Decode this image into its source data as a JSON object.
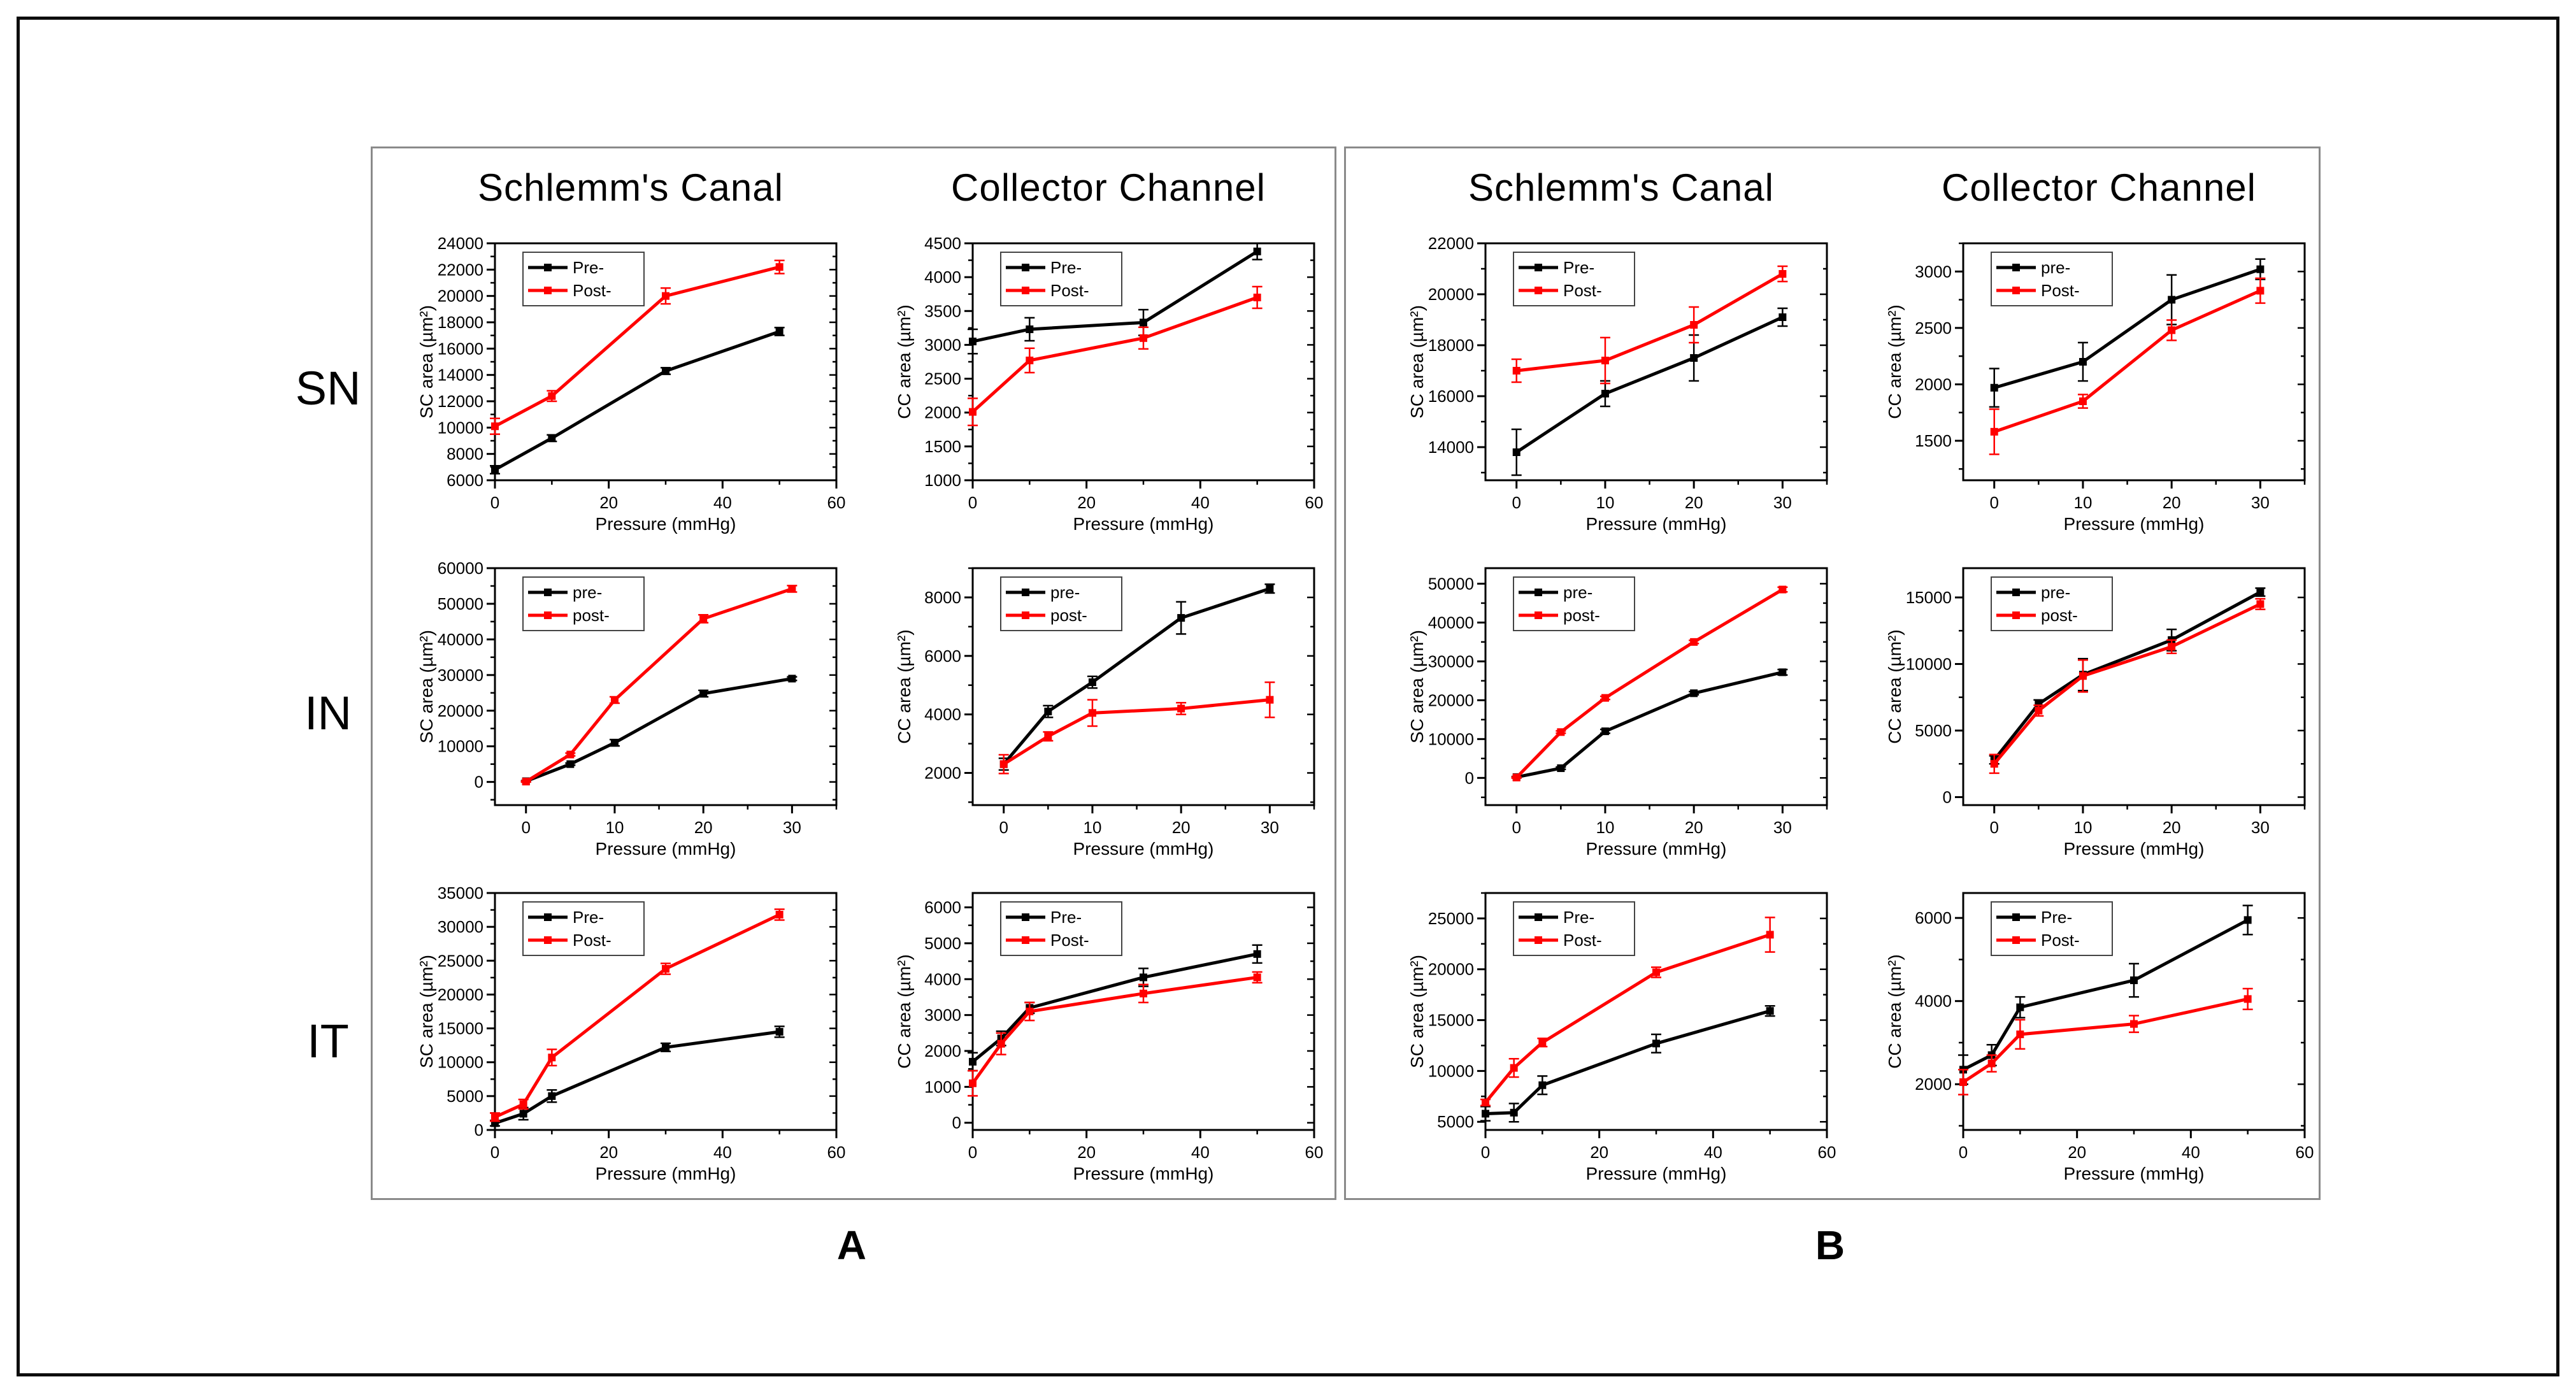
{
  "figure": {
    "row_labels": [
      "SN",
      "IN",
      "IT"
    ],
    "colors": {
      "pre": "#000000",
      "post": "#ff0000",
      "legend_border": "#444444",
      "panel_border": "#8a8a8a"
    }
  },
  "panels": [
    {
      "label": "A",
      "col_headers": [
        "Schlemm's Canal",
        "Collector  Channel"
      ]
    },
    {
      "label": "B",
      "col_headers": [
        "Schlemm's Canal",
        "Collector  Channel"
      ]
    }
  ],
  "chart_data": [
    {
      "panel": "A",
      "row": "SN",
      "location": "Schlemm's Canal",
      "type": "line",
      "xlabel": "Pressure (mmHg)",
      "ylabel": "SC area (µm²)",
      "xlim": [
        0,
        60
      ],
      "xticks": [
        0,
        20,
        40,
        60
      ],
      "ylim": [
        6000,
        24000
      ],
      "yticks": [
        6000,
        8000,
        10000,
        12000,
        14000,
        16000,
        18000,
        20000,
        22000,
        24000
      ],
      "legend_position": "top-left",
      "grid": false,
      "x": [
        0,
        10,
        30,
        50
      ],
      "series": [
        {
          "name": "Pre-",
          "color": "#000000",
          "values": [
            6800,
            9200,
            14300,
            17300
          ],
          "errors": [
            300,
            250,
            250,
            300
          ]
        },
        {
          "name": "Post-",
          "color": "#ff0000",
          "values": [
            10100,
            12400,
            20000,
            22200
          ],
          "errors": [
            600,
            400,
            600,
            500
          ]
        }
      ]
    },
    {
      "panel": "A",
      "row": "SN",
      "location": "Collector Channel",
      "type": "line",
      "xlabel": "Pressure (mmHg)",
      "ylabel": "CC area (µm²)",
      "xlim": [
        0,
        60
      ],
      "xticks": [
        0,
        20,
        40,
        60
      ],
      "ylim": [
        1000,
        4500
      ],
      "yticks": [
        1000,
        1500,
        2000,
        2500,
        3000,
        3500,
        4000,
        4500
      ],
      "legend_position": "top-left",
      "grid": false,
      "x": [
        0,
        10,
        30,
        50
      ],
      "series": [
        {
          "name": "Pre-",
          "color": "#000000",
          "values": [
            3050,
            3230,
            3330,
            4380
          ],
          "errors": [
            180,
            170,
            190,
            120
          ]
        },
        {
          "name": "Post-",
          "color": "#ff0000",
          "values": [
            2010,
            2770,
            3100,
            3700
          ],
          "errors": [
            200,
            180,
            160,
            160
          ]
        }
      ]
    },
    {
      "panel": "A",
      "row": "IN",
      "location": "Schlemm's Canal",
      "type": "line",
      "xlabel": "Pressure (mmHg)",
      "ylabel": "SC area (µm²)",
      "xlim": [
        -3.5,
        35
      ],
      "xticks": [
        0,
        10,
        20,
        30
      ],
      "ylim": [
        -6500,
        60000
      ],
      "yticks": [
        0,
        10000,
        20000,
        30000,
        40000,
        50000,
        60000
      ],
      "legend_position": "top-left",
      "grid": false,
      "x": [
        0,
        5,
        10,
        20,
        30
      ],
      "series": [
        {
          "name": "pre-",
          "color": "#000000",
          "values": [
            200,
            5000,
            11000,
            24800,
            29000
          ],
          "errors": [
            150,
            300,
            900,
            900,
            500
          ]
        },
        {
          "name": "post-",
          "color": "#ff0000",
          "values": [
            100,
            7700,
            23000,
            45800,
            54200
          ],
          "errors": [
            150,
            400,
            900,
            1100,
            900
          ]
        }
      ]
    },
    {
      "panel": "A",
      "row": "IN",
      "location": "Collector Channel",
      "type": "line",
      "xlabel": "Pressure (mmHg)",
      "ylabel": "CC area (µm²)",
      "xlim": [
        -3.5,
        35
      ],
      "xticks": [
        0,
        10,
        20,
        30
      ],
      "ylim": [
        900,
        9000
      ],
      "yticks": [
        2000,
        4000,
        6000,
        8000
      ],
      "legend_position": "top-left",
      "grid": false,
      "x": [
        0,
        5,
        10,
        20,
        30
      ],
      "series": [
        {
          "name": "pre-",
          "color": "#000000",
          "values": [
            2300,
            4100,
            5100,
            7300,
            8300
          ],
          "errors": [
            200,
            200,
            200,
            550,
            150
          ]
        },
        {
          "name": "post-",
          "color": "#ff0000",
          "values": [
            2300,
            3250,
            4050,
            4200,
            4500
          ],
          "errors": [
            320,
            150,
            450,
            200,
            600
          ]
        }
      ]
    },
    {
      "panel": "A",
      "row": "IT",
      "location": "Schlemm's Canal",
      "type": "line",
      "xlabel": "Pressure (mmHg)",
      "ylabel": "SC area (µm²)",
      "xlim": [
        0,
        60
      ],
      "xticks": [
        0,
        20,
        40,
        60
      ],
      "ylim": [
        0,
        35000
      ],
      "yticks": [
        0,
        5000,
        10000,
        15000,
        20000,
        25000,
        30000,
        35000
      ],
      "legend_position": "top-left",
      "grid": false,
      "x": [
        0,
        5,
        10,
        30,
        50
      ],
      "series": [
        {
          "name": "Pre-",
          "color": "#000000",
          "values": [
            1000,
            2400,
            5000,
            12200,
            14500
          ],
          "errors": [
            400,
            900,
            900,
            600,
            800
          ]
        },
        {
          "name": "Post-",
          "color": "#ff0000",
          "values": [
            1900,
            3800,
            10700,
            23800,
            31800
          ],
          "errors": [
            600,
            700,
            1200,
            800,
            800
          ]
        }
      ]
    },
    {
      "panel": "A",
      "row": "IT",
      "location": "Collector Channel",
      "type": "line",
      "xlabel": "Pressure (mmHg)",
      "ylabel": "CC area (µm²)",
      "xlim": [
        0,
        60
      ],
      "xticks": [
        0,
        20,
        40,
        60
      ],
      "ylim": [
        -200,
        6400
      ],
      "yticks": [
        0,
        1000,
        2000,
        3000,
        4000,
        5000,
        6000
      ],
      "legend_position": "top-left",
      "grid": false,
      "x": [
        0,
        5,
        10,
        30,
        50
      ],
      "series": [
        {
          "name": "Pre-",
          "color": "#000000",
          "values": [
            1700,
            2350,
            3200,
            4050,
            4700
          ],
          "errors": [
            250,
            200,
            150,
            250,
            250
          ]
        },
        {
          "name": "Post-",
          "color": "#ff0000",
          "values": [
            1100,
            2200,
            3100,
            3600,
            4050
          ],
          "errors": [
            350,
            300,
            250,
            250,
            150
          ]
        }
      ]
    },
    {
      "panel": "B",
      "row": "SN",
      "location": "Schlemm's Canal",
      "type": "line",
      "xlabel": "Pressure (mmHg)",
      "ylabel": "SC area (µm²)",
      "xlim": [
        -3.5,
        35
      ],
      "xticks": [
        0,
        10,
        20,
        30
      ],
      "ylim": [
        12700,
        22000
      ],
      "yticks": [
        14000,
        16000,
        18000,
        20000,
        22000
      ],
      "legend_position": "top-left",
      "grid": false,
      "x": [
        0,
        10,
        20,
        30
      ],
      "series": [
        {
          "name": "Pre-",
          "color": "#000000",
          "values": [
            13800,
            16100,
            17500,
            19100
          ],
          "errors": [
            900,
            500,
            900,
            350
          ]
        },
        {
          "name": "Post-",
          "color": "#ff0000",
          "values": [
            17000,
            17400,
            18800,
            20800
          ],
          "errors": [
            450,
            900,
            700,
            300
          ]
        }
      ]
    },
    {
      "panel": "B",
      "row": "SN",
      "location": "Collector Channel",
      "type": "line",
      "xlabel": "Pressure (mmHg)",
      "ylabel": "CC area (µm²)",
      "xlim": [
        -3.5,
        35
      ],
      "xticks": [
        0,
        10,
        20,
        30
      ],
      "ylim": [
        1150,
        3250
      ],
      "yticks": [
        1500,
        2000,
        2500,
        3000
      ],
      "legend_position": "top-left",
      "grid": false,
      "x": [
        0,
        10,
        20,
        30
      ],
      "series": [
        {
          "name": "pre-",
          "color": "#000000",
          "values": [
            1970,
            2200,
            2750,
            3020
          ],
          "errors": [
            170,
            170,
            220,
            90
          ]
        },
        {
          "name": "Post-",
          "color": "#ff0000",
          "values": [
            1580,
            1850,
            2480,
            2830
          ],
          "errors": [
            200,
            60,
            90,
            110
          ]
        }
      ]
    },
    {
      "panel": "B",
      "row": "IN",
      "location": "Schlemm's Canal",
      "type": "line",
      "xlabel": "Pressure (mmHg)",
      "ylabel": "SC area (µm²)",
      "xlim": [
        -3.5,
        35
      ],
      "xticks": [
        0,
        10,
        20,
        30
      ],
      "ylim": [
        -7000,
        54000
      ],
      "yticks": [
        0,
        10000,
        20000,
        30000,
        40000,
        50000
      ],
      "legend_position": "top-left",
      "grid": false,
      "x": [
        0,
        5,
        10,
        20,
        30
      ],
      "series": [
        {
          "name": "pre-",
          "color": "#000000",
          "values": [
            200,
            2500,
            12000,
            21800,
            27200
          ],
          "errors": [
            150,
            300,
            500,
            400,
            700
          ]
        },
        {
          "name": "post-",
          "color": "#ff0000",
          "values": [
            100,
            11800,
            20600,
            35000,
            48500
          ],
          "errors": [
            150,
            300,
            400,
            400,
            600
          ]
        }
      ]
    },
    {
      "panel": "B",
      "row": "IN",
      "location": "Collector Channel",
      "type": "line",
      "xlabel": "Pressure (mmHg)",
      "ylabel": "CC area (µm²)",
      "xlim": [
        -3.5,
        35
      ],
      "xticks": [
        0,
        10,
        20,
        30
      ],
      "ylim": [
        -600,
        17200
      ],
      "yticks": [
        0,
        5000,
        10000,
        15000
      ],
      "legend_position": "top-left",
      "grid": false,
      "x": [
        0,
        5,
        10,
        20,
        30
      ],
      "series": [
        {
          "name": "pre-",
          "color": "#000000",
          "values": [
            2800,
            7000,
            9200,
            11800,
            15400
          ],
          "errors": [
            300,
            300,
            1200,
            800,
            300
          ]
        },
        {
          "name": "post-",
          "color": "#ff0000",
          "values": [
            2500,
            6500,
            9100,
            11300,
            14500
          ],
          "errors": [
            700,
            400,
            1200,
            500,
            400
          ]
        }
      ]
    },
    {
      "panel": "B",
      "row": "IT",
      "location": "Schlemm's Canal",
      "type": "line",
      "xlabel": "Pressure (mmHg)",
      "ylabel": "SC area (µm²)",
      "xlim": [
        0,
        60
      ],
      "xticks": [
        0,
        20,
        40,
        60
      ],
      "ylim": [
        4200,
        27500
      ],
      "yticks": [
        5000,
        10000,
        15000,
        20000,
        25000
      ],
      "legend_position": "top-left",
      "grid": false,
      "x": [
        0,
        5,
        10,
        30,
        50
      ],
      "series": [
        {
          "name": "Pre-",
          "color": "#000000",
          "values": [
            5800,
            5900,
            8600,
            12700,
            15900
          ],
          "errors": [
            700,
            900,
            900,
            900,
            500
          ]
        },
        {
          "name": "Post-",
          "color": "#ff0000",
          "values": [
            6900,
            10300,
            12800,
            19700,
            23400
          ],
          "errors": [
            300,
            900,
            400,
            500,
            1700
          ]
        }
      ]
    },
    {
      "panel": "B",
      "row": "IT",
      "location": "Collector Channel",
      "type": "line",
      "xlabel": "Pressure (mmHg)",
      "ylabel": "CC area (µm²)",
      "xlim": [
        0,
        60
      ],
      "xticks": [
        0,
        20,
        40,
        60
      ],
      "ylim": [
        900,
        6600
      ],
      "yticks": [
        2000,
        4000,
        6000
      ],
      "legend_position": "top-left",
      "grid": false,
      "x": [
        0,
        5,
        10,
        30,
        50
      ],
      "series": [
        {
          "name": "Pre-",
          "color": "#000000",
          "values": [
            2350,
            2700,
            3850,
            4500,
            5950
          ],
          "errors": [
            350,
            250,
            250,
            400,
            350
          ]
        },
        {
          "name": "Post-",
          "color": "#ff0000",
          "values": [
            2050,
            2500,
            3200,
            3450,
            4050
          ],
          "errors": [
            300,
            200,
            350,
            200,
            250
          ]
        }
      ]
    }
  ]
}
